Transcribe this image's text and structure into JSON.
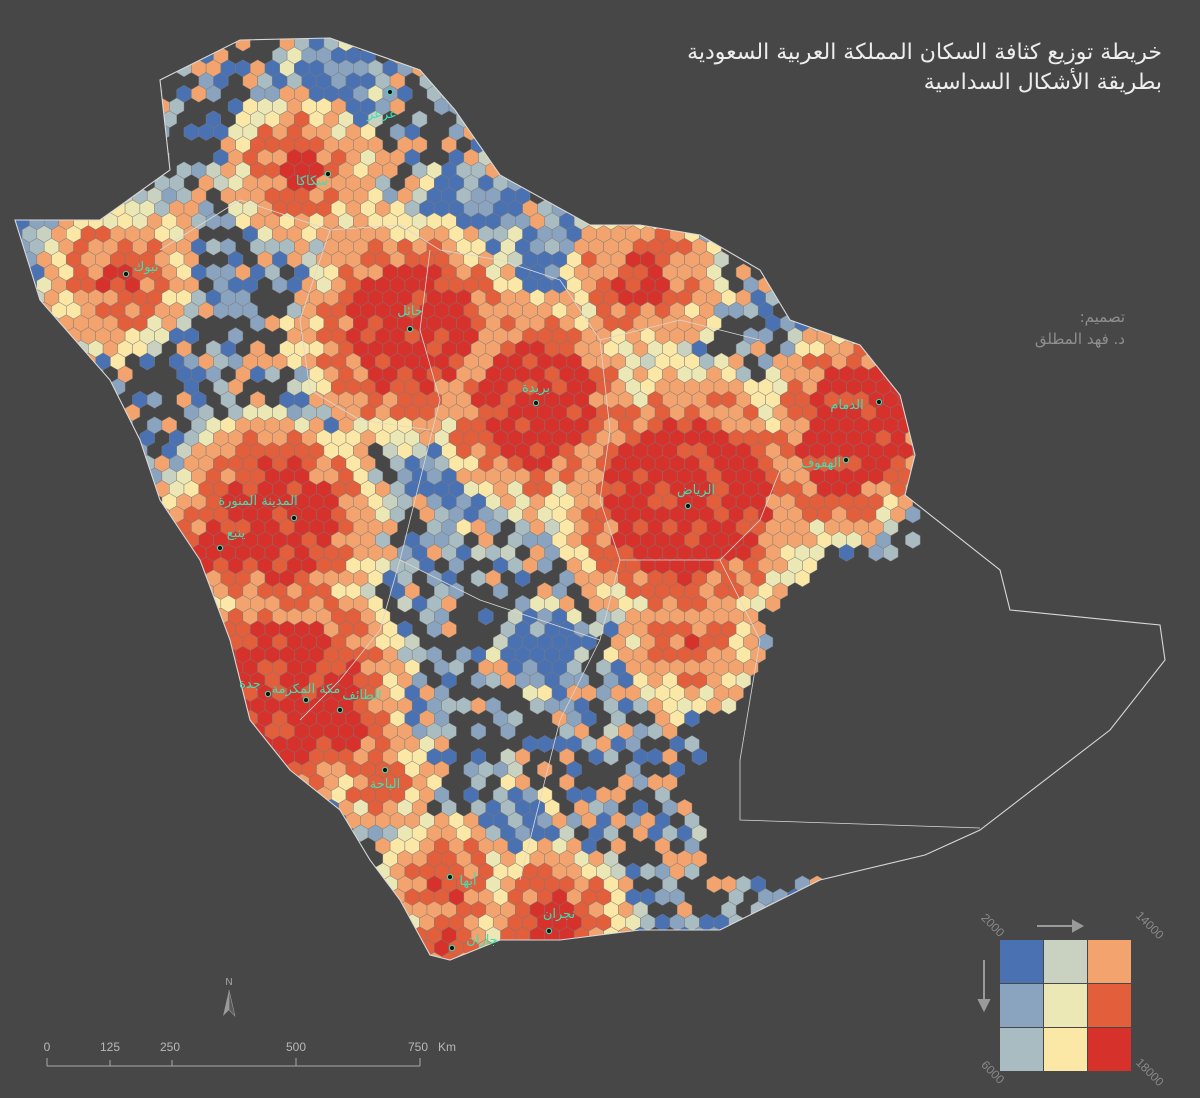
{
  "title": {
    "line1": "خريطة توزيع كثافة السكان المملكة العربية السعودية",
    "line2": "بطريقة الأشكال السداسية"
  },
  "credit": {
    "line1": "تصميم:",
    "line2": "د. فهد المطلق"
  },
  "cities": [
    {
      "name": "عرعر"
    },
    {
      "name": "سكاكا"
    },
    {
      "name": "تبوك"
    },
    {
      "name": "حائل"
    },
    {
      "name": "بريدة"
    },
    {
      "name": "الدمام"
    },
    {
      "name": "الهفوف"
    },
    {
      "name": "الرياض"
    },
    {
      "name": "المدينة المنورة"
    },
    {
      "name": "ينبع"
    },
    {
      "name": "جدة"
    },
    {
      "name": "مكة المكرمة"
    },
    {
      "name": "الطائف"
    },
    {
      "name": "الباحة"
    },
    {
      "name": "أبها"
    },
    {
      "name": "نجران"
    },
    {
      "name": "جازان"
    }
  ],
  "scale_bar": {
    "ticks": [
      "0",
      "125",
      "250",
      "500",
      "750"
    ],
    "unit": "Km"
  },
  "north_arrow": {
    "label": "N"
  },
  "legend": {
    "x_min": "2000",
    "x_max": "14000",
    "y_min": "6000",
    "y_max": "18000",
    "colors": [
      [
        "#4a72b3",
        "#c9d1c0",
        "#f2a36e"
      ],
      [
        "#8aa3bf",
        "#ece8b6",
        "#e35e3b"
      ],
      [
        "#a9bcc2",
        "#fbe7a6",
        "#d6312b"
      ]
    ]
  },
  "colors": {
    "background": "#474747",
    "border": "#d8d8d8",
    "title": "#ededed",
    "city_label": "#3fe0b4"
  }
}
